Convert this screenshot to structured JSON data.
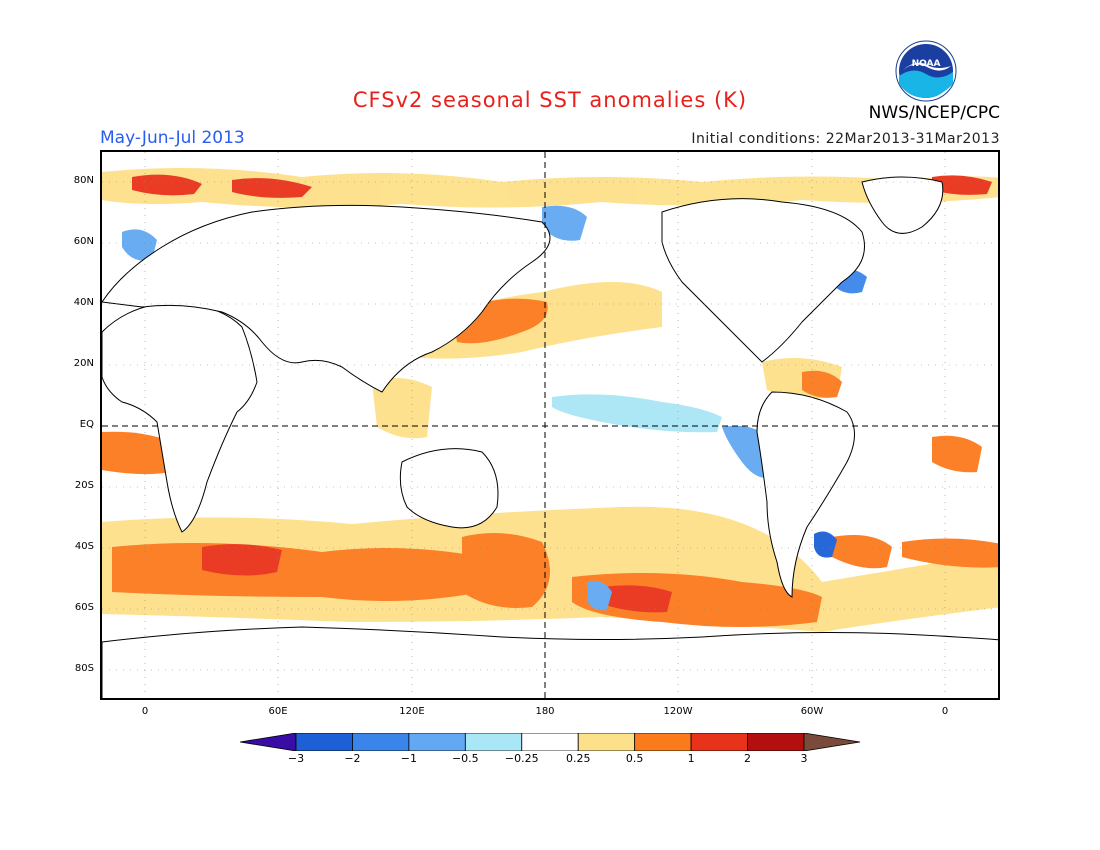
{
  "header": {
    "title": "CFSv2 seasonal SST anomalies (K)",
    "agency": "NWS/NCEP/CPC",
    "season": "May-Jun-Jul 2013",
    "initial_conditions": "Initial conditions: 22Mar2013-31Mar2013",
    "logo_text": "NOAA"
  },
  "map": {
    "lat_labels": [
      "80N",
      "60N",
      "40N",
      "20N",
      "EQ",
      "20S",
      "40S",
      "60S",
      "80S"
    ],
    "lon_labels": [
      "0",
      "60E",
      "120E",
      "180",
      "120W",
      "60W",
      "0"
    ]
  },
  "colorbar": {
    "labels": [
      "-3",
      "-2",
      "-1",
      "-0.5",
      "-0.25",
      "0.25",
      "0.5",
      "1",
      "2",
      "3"
    ],
    "colors": [
      "#3a0ca6",
      "#1d5fd6",
      "#3a85ea",
      "#62a8f2",
      "#a9e6f6",
      "#ffffff",
      "#fde08a",
      "#fb7a1c",
      "#e9321a",
      "#b40f0f",
      "#7a4a3a"
    ]
  }
}
